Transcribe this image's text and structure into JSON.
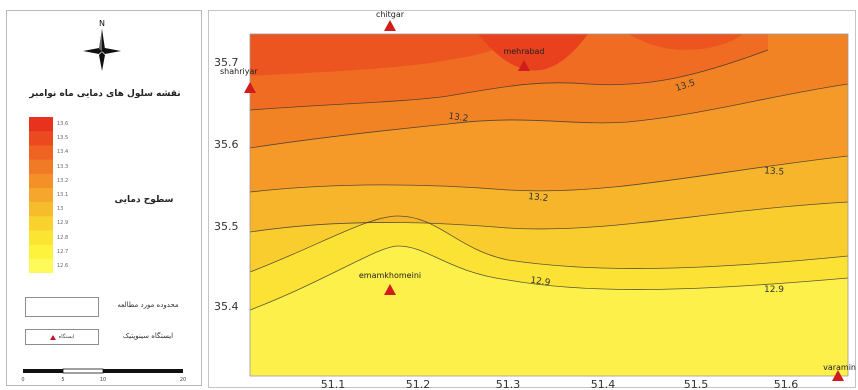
{
  "legend": {
    "title": "نقشه سلول های دمایی ماه نوامبر",
    "north_label": "N",
    "ramp_caption": "سطوح دمایی",
    "ramp_colors": [
      "#e8321d",
      "#eb4a1f",
      "#ee6222",
      "#f07a25",
      "#f39028",
      "#f5a62b",
      "#f7bc2c",
      "#f9d22e",
      "#fbe432",
      "#fdf23d",
      "#fefa5a"
    ],
    "ramp_labels": [
      "13.6",
      "13.5",
      "13.4",
      "13.3",
      "13.2",
      "13.1",
      "13",
      "12.9",
      "12.8",
      "12.7",
      "12.6"
    ],
    "study_area_label": "محدوده مورد مطالعه",
    "station_label": "ایستگاه سینوپتیک",
    "station_box_text": "ایستگاه",
    "scale_ticks": [
      "0",
      "5",
      "10",
      "20"
    ]
  },
  "map": {
    "x_ticks": [
      "51.1",
      "51.2",
      "51.3",
      "51.4",
      "51.5",
      "51.6"
    ],
    "y_ticks": [
      "35.7",
      "35.6",
      "35.5",
      "35.4"
    ],
    "contour_labels": [
      "13.5",
      "13.2",
      "13.5",
      "13.2",
      "12.9",
      "12.9"
    ],
    "stations": [
      {
        "name": "chitgar"
      },
      {
        "name": "mehrabad"
      },
      {
        "name": "shahriyar"
      },
      {
        "name": "emamkhomeini"
      },
      {
        "name": "varamin"
      }
    ],
    "station_color": "#d01c1c"
  }
}
